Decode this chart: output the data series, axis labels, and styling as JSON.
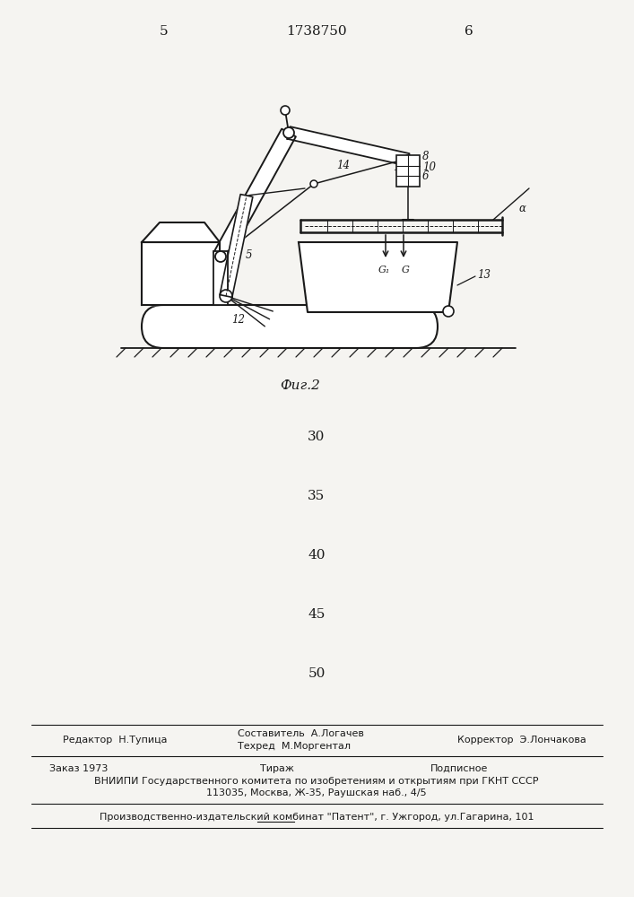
{
  "page_number_left": "5",
  "page_number_center": "1738750",
  "page_number_right": "6",
  "fig_caption": "Фиг.2",
  "bg_color": "#f5f4f1",
  "line_color": "#1a1a1a",
  "footer_line1_col1": "Редактор  Н.Тупица",
  "footer_line1_col2_1": "Составитель  А.Логачев",
  "footer_line1_col2_2": "Техред  М.Моргентал",
  "footer_line1_col3": "Корректор  Э.Лончакова",
  "footer_line2_col1": "Заказ 1973",
  "footer_line2_col2": "Тираж",
  "footer_line2_col3": "Подписное",
  "footer_line3": "ВНИИПИ Государственного комитета по изобретениям и открытиям при ГКНТ СССР",
  "footer_line4": "113035, Москва, Ж-35, Раушская наб., 4/5",
  "footer_line5": "Производственно-издательский комбинат \"Патент\", г. Ужгород, ул.Гагарина, 101",
  "numbers_mid": [
    "30",
    "35",
    "40",
    "45",
    "50"
  ],
  "numbers_mid_y": [
    487,
    553,
    619,
    685,
    751
  ]
}
